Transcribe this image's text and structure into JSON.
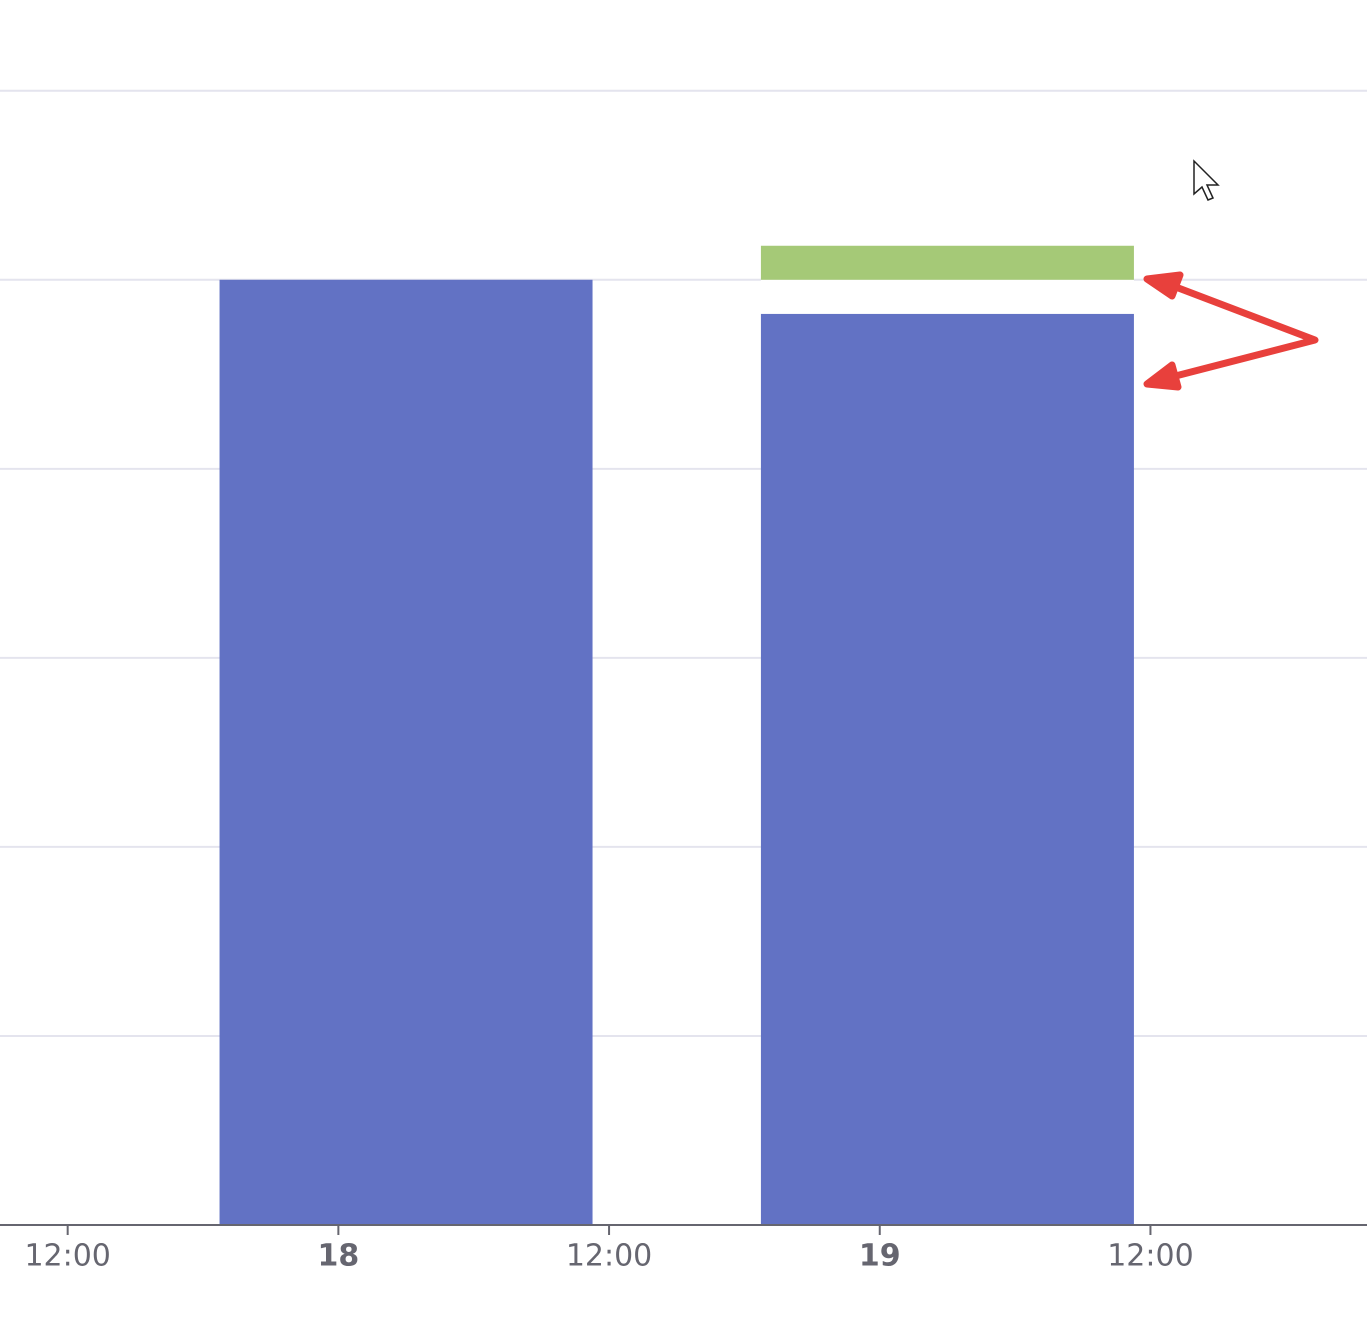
{
  "chart_data": {
    "type": "bar",
    "stacked": true,
    "x": [
      27,
      51
    ],
    "series": [
      {
        "color": "#6272c4",
        "values": [
          5,
          4.82
        ]
      },
      {
        "color": "#ffffff",
        "values": [
          0,
          0.18
        ]
      },
      {
        "color": "#a5c977",
        "values": [
          0,
          0.18
        ]
      }
    ],
    "xlim": [
      9,
      69.6
    ],
    "xticks": [
      {
        "value": 12,
        "label": "12:00"
      },
      {
        "value": 24,
        "label": "18"
      },
      {
        "value": 36,
        "label": "12:00"
      },
      {
        "value": 48,
        "label": "19"
      },
      {
        "value": 60,
        "label": "12:00"
      }
    ],
    "ylim": [
      0,
      6.48
    ],
    "yticks": [
      1,
      2,
      3,
      4,
      5,
      6
    ],
    "grid": true
  }
}
